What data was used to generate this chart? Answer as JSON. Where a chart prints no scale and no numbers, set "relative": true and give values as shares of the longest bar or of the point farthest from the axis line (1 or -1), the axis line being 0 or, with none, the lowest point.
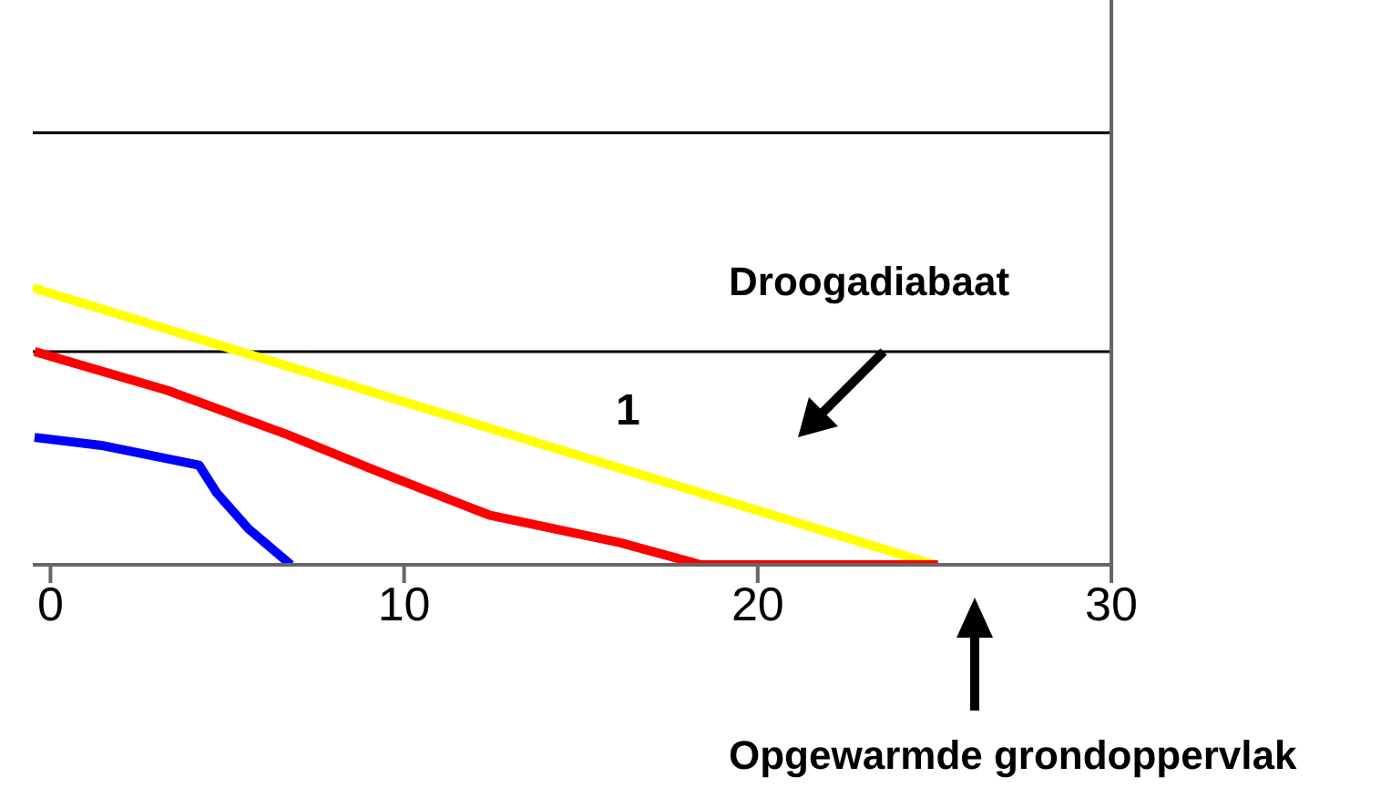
{
  "chart_data": {
    "type": "line",
    "relative": true,
    "xlim": [
      -0.5,
      30
    ],
    "xticks": [
      0,
      10,
      20,
      30
    ],
    "marker": "none",
    "ref_lines": [
      {
        "axis": "y",
        "value": 0.77,
        "color": "#000000"
      },
      {
        "axis": "y",
        "value": 1.56,
        "color": "#000000"
      }
    ],
    "series": [
      {
        "color": "#ffff00",
        "x": [
          -0.5,
          25
        ],
        "values": [
          1,
          0
        ]
      },
      {
        "color": "#ff0000",
        "x": [
          -0.45,
          3.3,
          6.7,
          9.2,
          12.4,
          16.1,
          18.4,
          25.1
        ],
        "values": [
          0.77,
          0.63,
          0.47,
          0.34,
          0.18,
          0.08,
          0,
          0
        ]
      },
      {
        "color": "#0000ff",
        "x": [
          -0.45,
          1.5,
          4.2,
          4.7,
          5.6,
          6.8
        ],
        "values": [
          0.46,
          0.43,
          0.36,
          0.26,
          0.13,
          0
        ]
      }
    ],
    "annotations": [
      "Droogadiabaat",
      "1",
      "Opgewarmde grondoppervlak"
    ]
  }
}
